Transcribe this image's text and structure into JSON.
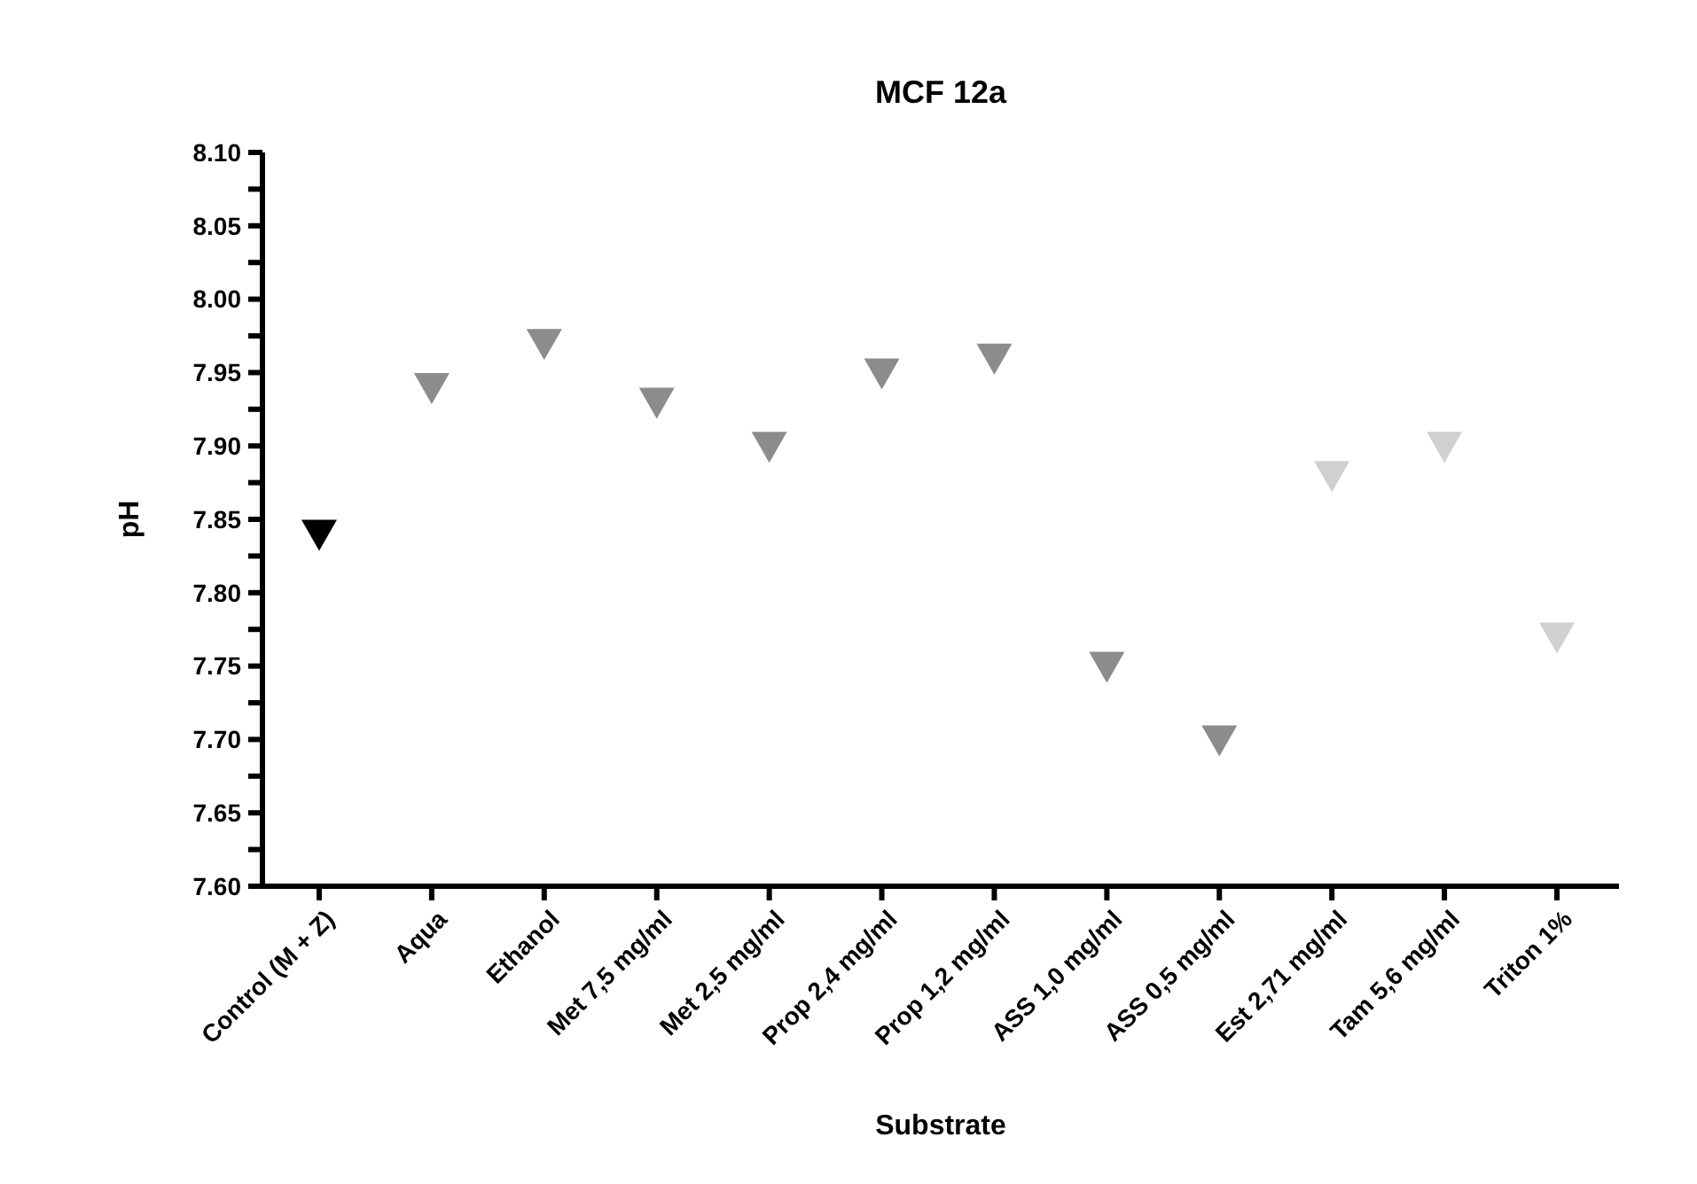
{
  "chart_data": {
    "type": "scatter",
    "title": "MCF 12a",
    "xlabel": "Substrate",
    "ylabel": "pH",
    "categories": [
      "Control (M + Z)",
      "Aqua",
      "Ethanol",
      "Met 7,5 mg/ml",
      "Met 2,5 mg/ml",
      "Prop 2,4 mg/ml",
      "Prop 1,2 mg/ml",
      "ASS 1,0 mg/ml",
      "ASS 0,5 mg/ml",
      "Est 2,71 mg/ml",
      "Tam 5,6 mg/ml",
      "Triton 1%"
    ],
    "values": [
      7.84,
      7.94,
      7.97,
      7.93,
      7.9,
      7.95,
      7.96,
      7.75,
      7.7,
      7.88,
      7.9,
      7.77
    ],
    "colors": [
      "#000000",
      "#8c8c8c",
      "#8c8c8c",
      "#8c8c8c",
      "#8c8c8c",
      "#8c8c8c",
      "#8c8c8c",
      "#8c8c8c",
      "#8c8c8c",
      "#d0d0d0",
      "#d0d0d0",
      "#d0d0d0"
    ],
    "marker": "triangle",
    "ylim": [
      7.6,
      8.1
    ],
    "yticks": [
      {
        "value": 7.6,
        "label": "7.60"
      },
      {
        "value": 7.625,
        "label": null
      },
      {
        "value": 7.65,
        "label": "7.65"
      },
      {
        "value": 7.675,
        "label": null
      },
      {
        "value": 7.7,
        "label": "7.70"
      },
      {
        "value": 7.725,
        "label": null
      },
      {
        "value": 7.75,
        "label": "7.75"
      },
      {
        "value": 7.775,
        "label": null
      },
      {
        "value": 7.8,
        "label": "7.80"
      },
      {
        "value": 7.825,
        "label": null
      },
      {
        "value": 7.85,
        "label": "7.85"
      },
      {
        "value": 7.875,
        "label": null
      },
      {
        "value": 7.9,
        "label": "7.90"
      },
      {
        "value": 7.925,
        "label": null
      },
      {
        "value": 7.95,
        "label": "7.95"
      },
      {
        "value": 7.975,
        "label": null
      },
      {
        "value": 8.0,
        "label": "8.00"
      },
      {
        "value": 8.025,
        "label": null
      },
      {
        "value": 8.05,
        "label": "8.05"
      },
      {
        "value": 8.075,
        "label": null
      },
      {
        "value": 8.1,
        "label": "8.10"
      }
    ],
    "grid": false
  }
}
